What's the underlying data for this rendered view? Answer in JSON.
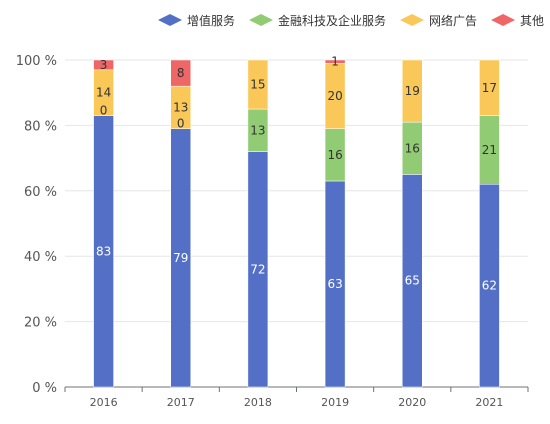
{
  "chart_data": {
    "type": "bar",
    "stacked": true,
    "categories": [
      "2016",
      "2017",
      "2018",
      "2019",
      "2020",
      "2021"
    ],
    "series": [
      {
        "name": "增值服务",
        "color": "#5470c6",
        "values": [
          83,
          79,
          72,
          63,
          65,
          62
        ]
      },
      {
        "name": "金融科技及企业服务",
        "color": "#91cc75",
        "values": [
          0,
          0,
          13,
          16,
          16,
          21
        ]
      },
      {
        "name": "网络广告",
        "color": "#fac858",
        "values": [
          14,
          13,
          15,
          20,
          19,
          17
        ]
      },
      {
        "name": "其他",
        "color": "#ee6666",
        "values": [
          3,
          8,
          0,
          1,
          0,
          0
        ]
      }
    ],
    "data_labels": [
      [
        "83",
        "79",
        "72",
        "63",
        "65",
        "62"
      ],
      [
        "0",
        "0",
        "13",
        "16",
        "16",
        "21"
      ],
      [
        "14",
        "13",
        "15",
        "20",
        "19",
        "17"
      ],
      [
        "3",
        "8",
        "",
        "1",
        "",
        ""
      ]
    ],
    "ylim": [
      0,
      100
    ],
    "yticks": [
      0,
      20,
      40,
      60,
      80,
      100
    ],
    "ytick_labels": [
      "0 %",
      "20 %",
      "40 %",
      "60 %",
      "80 %",
      "100 %"
    ],
    "legend_position": "top-right",
    "grid": true
  }
}
